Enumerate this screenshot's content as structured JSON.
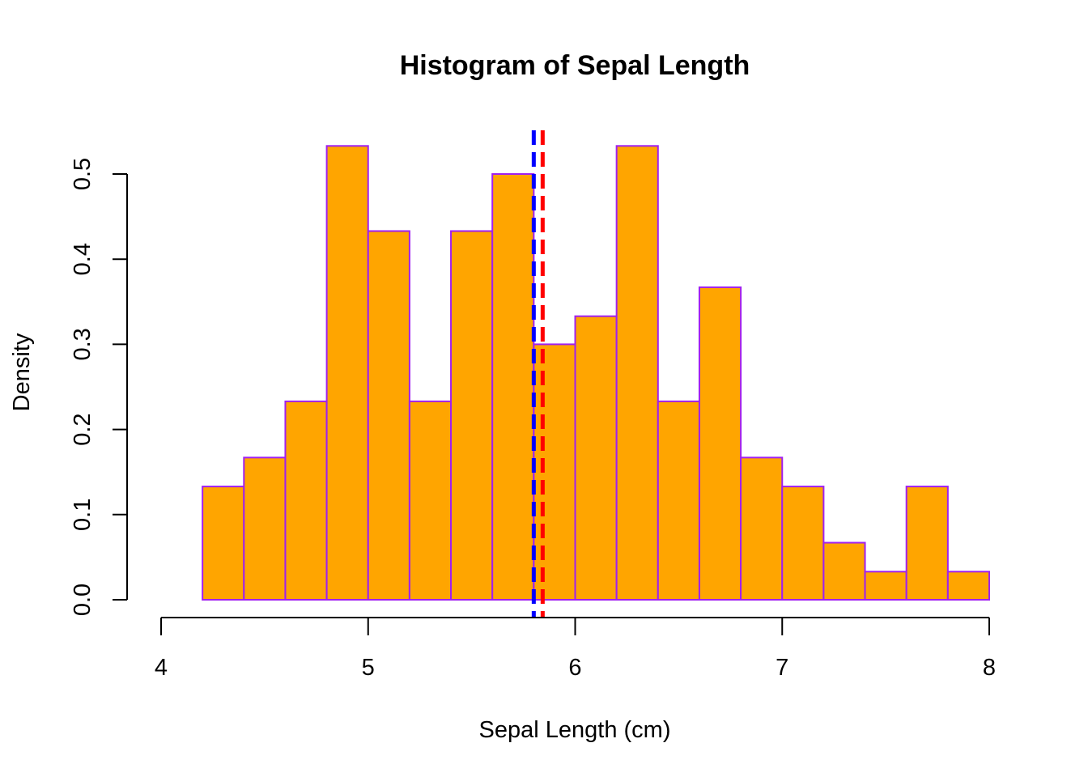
{
  "chart_data": {
    "type": "bar",
    "title": "Histogram of Sepal Length",
    "xlabel": "Sepal Length (cm)",
    "ylabel": "Density",
    "xlim": [
      4,
      8
    ],
    "ylim": [
      0,
      0.5
    ],
    "x_ticks": [
      "4",
      "5",
      "6",
      "7",
      "8"
    ],
    "y_ticks": [
      "0.0",
      "0.1",
      "0.2",
      "0.3",
      "0.4",
      "0.5"
    ],
    "bins": [
      {
        "start": 4.2,
        "end": 4.4,
        "density": 0.133
      },
      {
        "start": 4.4,
        "end": 4.6,
        "density": 0.167
      },
      {
        "start": 4.6,
        "end": 4.8,
        "density": 0.233
      },
      {
        "start": 4.8,
        "end": 5.0,
        "density": 0.533
      },
      {
        "start": 5.0,
        "end": 5.2,
        "density": 0.433
      },
      {
        "start": 5.2,
        "end": 5.4,
        "density": 0.233
      },
      {
        "start": 5.4,
        "end": 5.6,
        "density": 0.433
      },
      {
        "start": 5.6,
        "end": 5.8,
        "density": 0.5
      },
      {
        "start": 5.8,
        "end": 6.0,
        "density": 0.3
      },
      {
        "start": 6.0,
        "end": 6.2,
        "density": 0.333
      },
      {
        "start": 6.2,
        "end": 6.4,
        "density": 0.533
      },
      {
        "start": 6.4,
        "end": 6.6,
        "density": 0.233
      },
      {
        "start": 6.6,
        "end": 6.8,
        "density": 0.367
      },
      {
        "start": 6.8,
        "end": 7.0,
        "density": 0.167
      },
      {
        "start": 7.0,
        "end": 7.2,
        "density": 0.133
      },
      {
        "start": 7.2,
        "end": 7.4,
        "density": 0.067
      },
      {
        "start": 7.4,
        "end": 7.6,
        "density": 0.033
      },
      {
        "start": 7.6,
        "end": 7.8,
        "density": 0.133
      },
      {
        "start": 7.8,
        "end": 8.0,
        "density": 0.033
      }
    ],
    "reference_lines": [
      {
        "x": 5.8,
        "color": "#0000ff",
        "style": "dashed"
      },
      {
        "x": 5.843,
        "color": "#ff0000",
        "style": "dashed"
      }
    ],
    "bar_fill": "#ffa500",
    "bar_border": "#a020f0",
    "grid": false
  }
}
